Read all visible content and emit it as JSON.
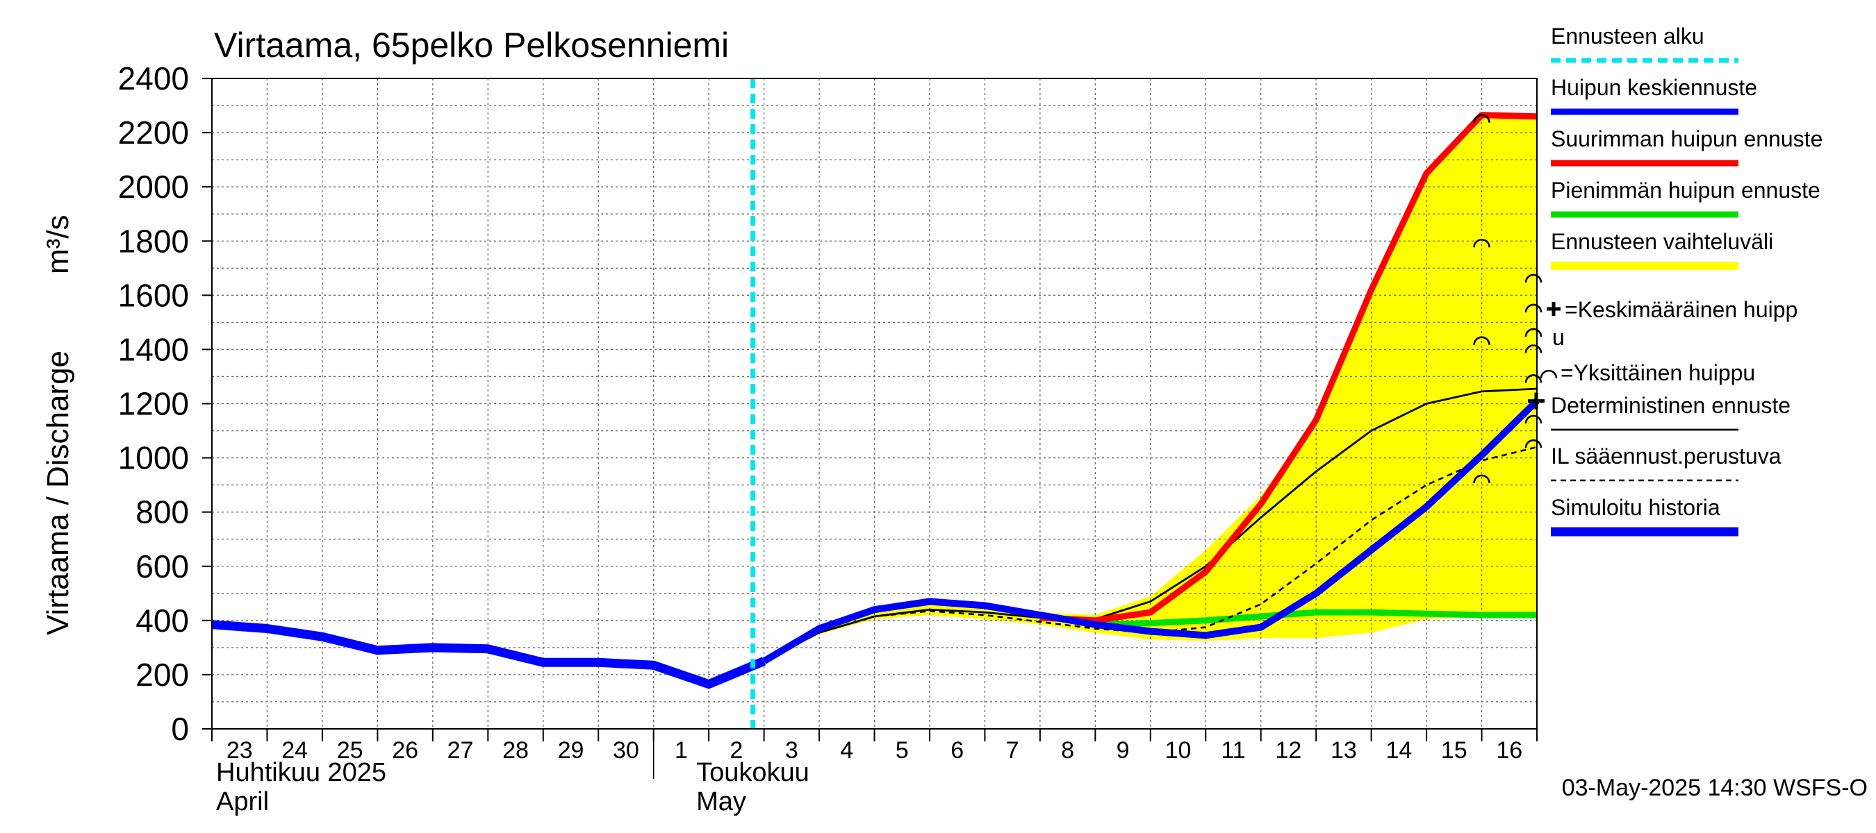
{
  "chart_data": {
    "type": "line",
    "title": "Virtaama, 65pelko Pelkosenniemi",
    "ylabel": "Virtaama / Discharge",
    "yunit": "m³/s",
    "ylim": [
      0,
      2400
    ],
    "yticks": [
      0,
      200,
      400,
      600,
      800,
      1000,
      1200,
      1400,
      1600,
      1800,
      2000,
      2200,
      2400
    ],
    "xlim": [
      "2025-04-23",
      "2025-05-17"
    ],
    "x_day_labels": [
      "23",
      "24",
      "25",
      "26",
      "27",
      "28",
      "29",
      "30",
      "1",
      "2",
      "3",
      "4",
      "5",
      "6",
      "7",
      "8",
      "9",
      "10",
      "11",
      "12",
      "13",
      "14",
      "15",
      "16"
    ],
    "month_labels": [
      {
        "fi": "Huhtikuu  2025",
        "en": "April"
      },
      {
        "fi": "Toukokuu",
        "en": "May"
      }
    ],
    "forecast_start": "2025-05-03",
    "timestamp": "03-May-2025 14:30 WSFS-O",
    "grid": true,
    "colors": {
      "forecast_start": "#00e5ee",
      "peak_mean": "#0000ff",
      "peak_max": "#ff0000",
      "peak_min": "#00e000",
      "range_fill": "#ffff00",
      "deterministic": "#000000",
      "il_based": "#000000",
      "history": "#0000ff"
    },
    "legend": {
      "placement": "right",
      "items": [
        {
          "key": "forecast_start",
          "label": "Ennusteen alku"
        },
        {
          "key": "peak_mean",
          "label": "Huipun keskiennuste"
        },
        {
          "key": "peak_max",
          "label": "Suurimman huipun ennuste"
        },
        {
          "key": "peak_min",
          "label": "Pienimmän huipun ennuste"
        },
        {
          "key": "range_fill",
          "label": "Ennusteen vaihteluväli"
        },
        {
          "key": "mean_peak_marker",
          "label": "=Keskimääräinen huipp",
          "label2": "u"
        },
        {
          "key": "single_peak_marker",
          "label": "=Yksittäinen huippu"
        },
        {
          "key": "deterministic",
          "label": "Deterministinen ennuste"
        },
        {
          "key": "il_based",
          "label": "IL sääennust.perustuva"
        },
        {
          "key": "history",
          "label": "Simuloitu historia"
        }
      ]
    },
    "series": [
      {
        "name": "Simuloitu historia",
        "points": [
          [
            "2025-04-23",
            385
          ],
          [
            "2025-04-24",
            370
          ],
          [
            "2025-04-25",
            340
          ],
          [
            "2025-04-26",
            290
          ],
          [
            "2025-04-27",
            300
          ],
          [
            "2025-04-28",
            295
          ],
          [
            "2025-04-29",
            245
          ],
          [
            "2025-04-30",
            245
          ],
          [
            "2025-05-01",
            235
          ],
          [
            "2025-05-02",
            165
          ],
          [
            "2025-05-03",
            250
          ]
        ]
      },
      {
        "name": "Huipun keskiennuste",
        "points": [
          [
            "2025-05-03",
            250
          ],
          [
            "2025-05-04",
            370
          ],
          [
            "2025-05-05",
            440
          ],
          [
            "2025-05-06",
            470
          ],
          [
            "2025-05-07",
            455
          ],
          [
            "2025-05-08",
            420
          ],
          [
            "2025-05-09",
            385
          ],
          [
            "2025-05-10",
            360
          ],
          [
            "2025-05-11",
            345
          ],
          [
            "2025-05-12",
            375
          ],
          [
            "2025-05-13",
            500
          ],
          [
            "2025-05-14",
            660
          ],
          [
            "2025-05-15",
            820
          ],
          [
            "2025-05-16",
            1010
          ],
          [
            "2025-05-17",
            1210
          ]
        ]
      },
      {
        "name": "Suurimman huipun ennuste",
        "points": [
          [
            "2025-05-08",
            410
          ],
          [
            "2025-05-09",
            400
          ],
          [
            "2025-05-10",
            430
          ],
          [
            "2025-05-11",
            580
          ],
          [
            "2025-05-12",
            830
          ],
          [
            "2025-05-13",
            1140
          ],
          [
            "2025-05-14",
            1620
          ],
          [
            "2025-05-15",
            2050
          ],
          [
            "2025-05-16",
            2265
          ],
          [
            "2025-05-17",
            2260
          ]
        ]
      },
      {
        "name": "Pienimmän huipun ennuste",
        "points": [
          [
            "2025-05-09",
            385
          ],
          [
            "2025-05-10",
            390
          ],
          [
            "2025-05-11",
            400
          ],
          [
            "2025-05-12",
            415
          ],
          [
            "2025-05-13",
            430
          ],
          [
            "2025-05-14",
            430
          ],
          [
            "2025-05-15",
            425
          ],
          [
            "2025-05-16",
            420
          ],
          [
            "2025-05-17",
            420
          ]
        ]
      },
      {
        "name": "Ennusteen vaihteluväli",
        "upper": [
          [
            "2025-05-03",
            255
          ],
          [
            "2025-05-04",
            375
          ],
          [
            "2025-05-05",
            440
          ],
          [
            "2025-05-06",
            470
          ],
          [
            "2025-05-07",
            460
          ],
          [
            "2025-05-08",
            430
          ],
          [
            "2025-05-09",
            420
          ],
          [
            "2025-05-10",
            490
          ],
          [
            "2025-05-11",
            660
          ],
          [
            "2025-05-12",
            860
          ],
          [
            "2025-05-13",
            1140
          ],
          [
            "2025-05-14",
            1620
          ],
          [
            "2025-05-15",
            2050
          ],
          [
            "2025-05-16",
            2265
          ],
          [
            "2025-05-17",
            2265
          ]
        ],
        "lower": [
          [
            "2025-05-03",
            245
          ],
          [
            "2025-05-04",
            350
          ],
          [
            "2025-05-05",
            405
          ],
          [
            "2025-05-06",
            420
          ],
          [
            "2025-05-07",
            405
          ],
          [
            "2025-05-08",
            385
          ],
          [
            "2025-05-09",
            355
          ],
          [
            "2025-05-10",
            330
          ],
          [
            "2025-05-11",
            325
          ],
          [
            "2025-05-12",
            335
          ],
          [
            "2025-05-13",
            335
          ],
          [
            "2025-05-14",
            355
          ],
          [
            "2025-05-15",
            405
          ],
          [
            "2025-05-16",
            415
          ],
          [
            "2025-05-17",
            415
          ]
        ]
      },
      {
        "name": "Deterministinen ennuste",
        "points": [
          [
            "2025-05-03",
            250
          ],
          [
            "2025-05-04",
            355
          ],
          [
            "2025-05-05",
            415
          ],
          [
            "2025-05-06",
            440
          ],
          [
            "2025-05-07",
            430
          ],
          [
            "2025-05-08",
            410
          ],
          [
            "2025-05-09",
            405
          ],
          [
            "2025-05-10",
            470
          ],
          [
            "2025-05-11",
            600
          ],
          [
            "2025-05-12",
            780
          ],
          [
            "2025-05-13",
            950
          ],
          [
            "2025-05-14",
            1100
          ],
          [
            "2025-05-15",
            1200
          ],
          [
            "2025-05-16",
            1245
          ],
          [
            "2025-05-17",
            1255
          ]
        ]
      },
      {
        "name": "IL sääennust.perustuva",
        "points": [
          [
            "2025-05-03",
            250
          ],
          [
            "2025-05-04",
            355
          ],
          [
            "2025-05-05",
            415
          ],
          [
            "2025-05-06",
            435
          ],
          [
            "2025-05-07",
            420
          ],
          [
            "2025-05-08",
            395
          ],
          [
            "2025-05-09",
            370
          ],
          [
            "2025-05-10",
            355
          ],
          [
            "2025-05-11",
            375
          ],
          [
            "2025-05-12",
            460
          ],
          [
            "2025-05-13",
            610
          ],
          [
            "2025-05-14",
            770
          ],
          [
            "2025-05-15",
            900
          ],
          [
            "2025-05-16",
            990
          ],
          [
            "2025-05-17",
            1040
          ]
        ]
      }
    ],
    "single_peaks": [
      [
        "2025-05-16",
        2260
      ],
      [
        "2025-05-16",
        1800
      ],
      [
        "2025-05-16",
        1440
      ],
      [
        "2025-05-16",
        930
      ],
      [
        "2025-05-17",
        1670
      ],
      [
        "2025-05-17",
        1560
      ],
      [
        "2025-05-17",
        1470
      ],
      [
        "2025-05-17",
        1410
      ],
      [
        "2025-05-17",
        1300
      ],
      [
        "2025-05-17",
        1150
      ],
      [
        "2025-05-17",
        1060
      ]
    ],
    "mean_peak": [
      "2025-05-17",
      1210
    ]
  }
}
